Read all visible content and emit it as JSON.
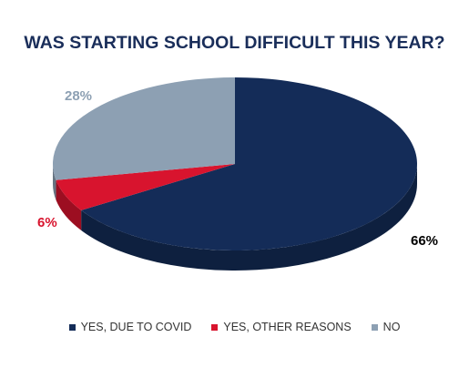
{
  "chart_data": {
    "type": "pie",
    "title": "WAS STARTING SCHOOL DIFFICULT THIS YEAR?",
    "categories": [
      "YES, DUE TO COVID",
      "YES, OTHER REASONS",
      "NO"
    ],
    "values": [
      66,
      6,
      28
    ],
    "labels": [
      "66%",
      "6%",
      "28%"
    ],
    "colors": [
      "#142c58",
      "#d8142e",
      "#8da0b3"
    ],
    "label_colors": [
      "#000000",
      "#d8142e",
      "#8da0b3"
    ],
    "legend": "bottom",
    "style": "3d"
  }
}
